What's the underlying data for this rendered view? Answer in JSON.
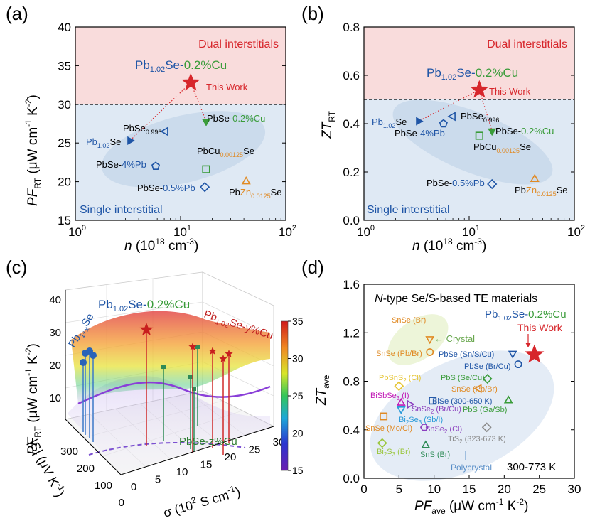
{
  "chart_data": [
    {
      "panel": "(a)",
      "type": "scatter",
      "xlabel_var": "n",
      "xlabel_unit": "(10",
      "xlabel_exp": "18",
      "xlabel_unit2": "cm",
      "xlabel_exp2": "-3",
      "xlabel_close": ")",
      "ylabel_var": "PF",
      "ylabel_sub": "RT",
      "ylabel_unit": "(μW cm",
      "ylabel_exp1": "-1",
      "ylabel_unit2": "K",
      "ylabel_exp2": "-2",
      "ylabel_close": ")",
      "xscale": "log",
      "xlim": [
        1,
        100
      ],
      "xtick_base": "10",
      "xtick_exps": [
        "0",
        "1",
        "2"
      ],
      "ylim": [
        15,
        40
      ],
      "yticks": [
        "15",
        "20",
        "25",
        "30",
        "35",
        "40"
      ],
      "threshold": 30,
      "region_top": "Dual interstitials",
      "region_bottom": "Single interstitial",
      "highlight_formula": [
        "Pb",
        "1.02",
        "Se-",
        "0.2%Cu"
      ],
      "points": [
        {
          "label": "This Work",
          "x": 12.5,
          "y": 32.8,
          "marker": "star"
        },
        {
          "label": "PbSe-0.2%Cu",
          "x": 17.5,
          "y": 27.8,
          "marker": "triangle-down"
        },
        {
          "label": "PbSe0.996",
          "x": 7.2,
          "y": 26.5,
          "marker": "triangle-left-open"
        },
        {
          "label": "Pb1.02Se",
          "x": 3.3,
          "y": 25.3,
          "marker": "triangle-right"
        },
        {
          "label": "PbCu0.00125Se",
          "x": 17.5,
          "y": 21.6,
          "marker": "square-open"
        },
        {
          "label": "PbSe-4%Pb",
          "x": 5.8,
          "y": 22.0,
          "marker": "pentagon-open"
        },
        {
          "label": "PbSe-0.5%Pb",
          "x": 17.0,
          "y": 19.3,
          "marker": "diamond-open"
        },
        {
          "label": "PbZn0.0125Se",
          "x": 42,
          "y": 20.0,
          "marker": "triangle-up-open"
        }
      ],
      "text_labels": {
        "this_work": "This Work",
        "cu": [
          "PbSe-",
          "0.2%Cu"
        ],
        "se0996": [
          "PbSe",
          "0.996"
        ],
        "pb102": [
          "Pb",
          "1.02",
          "Se"
        ],
        "cu00125": [
          "PbCu",
          "0.00125",
          "Se"
        ],
        "pb4": [
          "PbSe-",
          "4%Pb"
        ],
        "pb05": [
          "PbSe-",
          "0.5%Pb"
        ],
        "zn": [
          "Pb",
          "Zn",
          "0.0125",
          "Se"
        ]
      }
    },
    {
      "panel": "(b)",
      "type": "scatter",
      "ylabel_var": "ZT",
      "ylabel_sub": "RT",
      "xscale": "log",
      "xlim": [
        1,
        100
      ],
      "ylim": [
        0.0,
        0.8
      ],
      "yticks": [
        "0.0",
        "0.2",
        "0.4",
        "0.6",
        "0.8"
      ],
      "threshold": 0.5,
      "region_top": "Dual interstitials",
      "region_bottom": "Single interstitial",
      "points": [
        {
          "label": "This Work",
          "x": 12.5,
          "y": 0.54,
          "marker": "star"
        },
        {
          "label": "PbSe-0.2%Cu",
          "x": 16.5,
          "y": 0.37,
          "marker": "triangle-down"
        },
        {
          "label": "PbSe0.996",
          "x": 7.0,
          "y": 0.43,
          "marker": "triangle-left-open"
        },
        {
          "label": "Pb1.02Se",
          "x": 3.3,
          "y": 0.41,
          "marker": "triangle-right"
        },
        {
          "label": "PbCu0.00125Se",
          "x": 12.5,
          "y": 0.35,
          "marker": "square-open"
        },
        {
          "label": "PbSe-4%Pb",
          "x": 5.7,
          "y": 0.4,
          "marker": "pentagon-open"
        },
        {
          "label": "PbSe-0.5%Pb",
          "x": 16.5,
          "y": 0.15,
          "marker": "diamond-open"
        },
        {
          "label": "PbZn0.0125Se",
          "x": 42,
          "y": 0.17,
          "marker": "triangle-up-open"
        }
      ]
    },
    {
      "panel": "(c)",
      "type": "3d-surface",
      "zlabel_var": "PF",
      "zlabel_sub": "RT",
      "zticks": [
        "10",
        "20",
        "30",
        "40"
      ],
      "sigma_label": "σ (10",
      "sigma_exp": "2",
      "sigma_unit": "S cm",
      "sigma_exp2": "-1",
      "sigma_ticks": [
        "0",
        "5",
        "10",
        "15",
        "20",
        "25",
        "30"
      ],
      "s_label": "|S| (μV K",
      "s_exp": "-1",
      "s_ticks": [
        "0",
        "100",
        "200",
        "300"
      ],
      "colorbar_ticks": [
        "15",
        "20",
        "25",
        "30",
        "35"
      ],
      "series_labels": {
        "pbx": [
          "Pb",
          "1+x",
          "Se"
        ],
        "cuy": [
          "Pb",
          "1.02",
          "Se-y%Cu"
        ],
        "cuz": [
          "PbSe-z%Cu"
        ]
      }
    },
    {
      "panel": "(d)",
      "type": "scatter",
      "title_n": "N",
      "title_rest": "-type Se/S-based TE materials",
      "xlabel_var": "PF",
      "xlabel_sub": "ave",
      "ylabel_var": "ZT",
      "ylabel_sub": "ave",
      "xlim": [
        0,
        30
      ],
      "xticks": [
        "0",
        "5",
        "10",
        "15",
        "20",
        "25",
        "30"
      ],
      "ylim": [
        0.0,
        1.6
      ],
      "yticks": [
        "0.0",
        "0.4",
        "0.8",
        "1.2",
        "1.6"
      ],
      "temp_range": "300-773 K",
      "crystal_label": "Crystal",
      "polycrystal_label": "Polycrystal",
      "points": [
        {
          "label": "This Work",
          "x": 24.3,
          "y": 1.02,
          "marker": "star",
          "color": "#d7262b"
        },
        {
          "label": "SnSe (Br)",
          "x": 9.4,
          "y": 1.15,
          "marker": "triangle-down-open",
          "color": "#e08a24"
        },
        {
          "label": "SnSe (Pb/Br)",
          "x": 9.4,
          "y": 1.04,
          "marker": "circle-open",
          "color": "#e08a24"
        },
        {
          "label": "PbSe (Sn/S/Cu)",
          "x": 21.2,
          "y": 1.03,
          "marker": "triangle-down-open",
          "color": "#1f55a6"
        },
        {
          "label": "PbSe (Br/Cu)",
          "x": 22.0,
          "y": 0.94,
          "marker": "circle-open",
          "color": "#1f55a6"
        },
        {
          "label": "PbSnS2 (Cl)",
          "x": 5.0,
          "y": 0.76,
          "marker": "diamond-open",
          "color": "#e6c534"
        },
        {
          "label": "PbS (Se/Cu)",
          "x": 17.6,
          "y": 0.82,
          "marker": "diamond-open",
          "color": "#3a9c3a"
        },
        {
          "label": "SnSe (Pb/Br)",
          "x": 16.4,
          "y": 0.74,
          "marker": "triangle-left-open",
          "color": "#e08a24"
        },
        {
          "label": "BiSbSe3 (I)",
          "x": 5.3,
          "y": 0.62,
          "marker": "triangle-up-open",
          "color": "#c11bb6"
        },
        {
          "label": "SnSe2 (Br/Cu)",
          "x": 6.5,
          "y": 0.61,
          "marker": "triangle-right-open",
          "color": "#8b3fbf"
        },
        {
          "label": "BiSe (300-650 K)",
          "x": 9.8,
          "y": 0.64,
          "marker": "square-open",
          "color": "#1f55a6"
        },
        {
          "label": "Bi2Se3 (Sb/I)",
          "x": 5.3,
          "y": 0.57,
          "marker": "triangle-down-open",
          "color": "#2a9ad8"
        },
        {
          "label": "PbS (Ga/Sb)",
          "x": 20.6,
          "y": 0.64,
          "marker": "triangle-up-open",
          "color": "#3a9c3a"
        },
        {
          "label": "SnSe (Mo/Cl)",
          "x": 2.8,
          "y": 0.51,
          "marker": "square-open",
          "color": "#e08a24"
        },
        {
          "label": "SnSe2 (Cl)",
          "x": 8.6,
          "y": 0.42,
          "marker": "hexagon-open",
          "color": "#8b3fbf"
        },
        {
          "label": "TiS2 (323-673 K)",
          "x": 17.5,
          "y": 0.42,
          "marker": "diamond-open",
          "color": "#8a8a8a"
        },
        {
          "label": "Bi2S3 (Br)",
          "x": 2.6,
          "y": 0.29,
          "marker": "diamond-open",
          "color": "#9ac63c"
        },
        {
          "label": "SnS (Br)",
          "x": 8.8,
          "y": 0.27,
          "marker": "triangle-up-open",
          "color": "#2e8b57"
        }
      ]
    }
  ],
  "colors": {
    "blue": "#1f55a6",
    "green": "#3a9c3a",
    "red": "#d7262b",
    "orange": "#e08a24",
    "dual_bg": "#f9dcdc",
    "single_bg": "#dfe9f4",
    "ellipse": "#c4d6ea"
  }
}
